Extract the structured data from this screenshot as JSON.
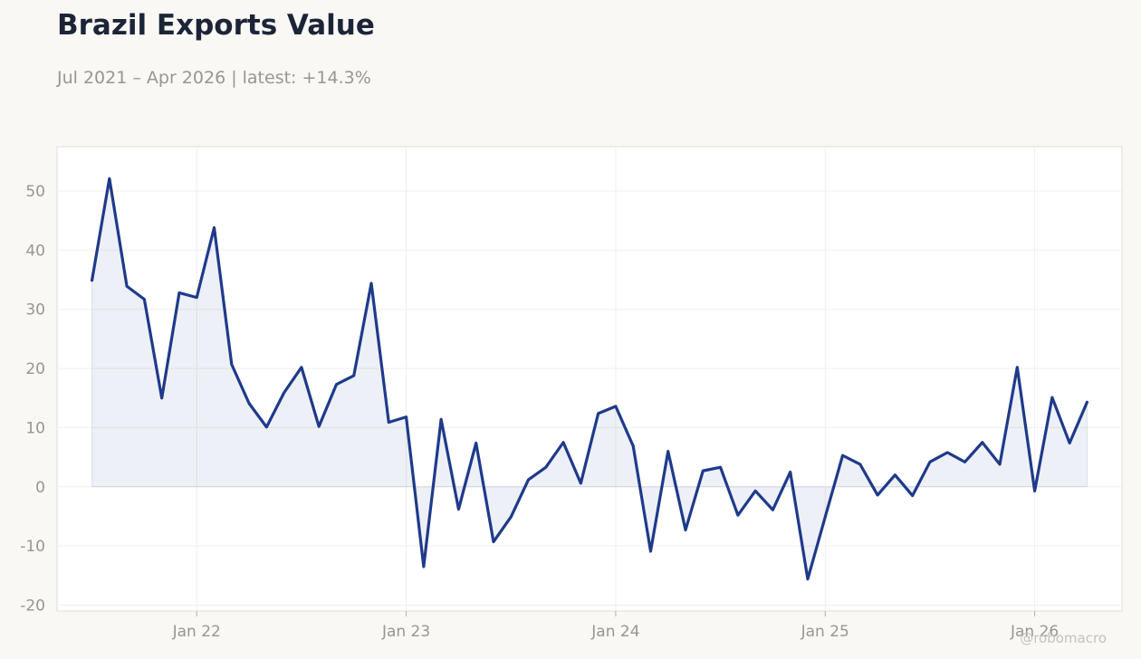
{
  "header": {
    "title": "Brazil Exports Value",
    "subtitle": "Jul 2021 – Apr 2026 | latest: +14.3%"
  },
  "watermark": "@robomacro",
  "colors": {
    "background": "#f9f8f5",
    "plot_background": "#ffffff",
    "line": "#1f3a8a",
    "area_fill": "#1f3a8a",
    "gridline": "#f0efec",
    "tick_text": "#999690",
    "title_text": "#1c2438"
  },
  "chart_data": {
    "type": "area",
    "title": "Brazil Exports Value",
    "subtitle": "Jul 2021 – Apr 2026 | latest: +14.3%",
    "xlabel": "",
    "ylabel": "",
    "x_ticks": [
      {
        "label": "Jan 22",
        "date": "2022-01"
      },
      {
        "label": "Jan 23",
        "date": "2023-01"
      },
      {
        "label": "Jan 24",
        "date": "2024-01"
      },
      {
        "label": "Jan 25",
        "date": "2025-01"
      },
      {
        "label": "Jan 26",
        "date": "2026-01"
      }
    ],
    "y_ticks": [
      -20,
      -10,
      0,
      10,
      20,
      30,
      40,
      50
    ],
    "ylim": [
      -21,
      57.5
    ],
    "xlim": [
      "2021-05",
      "2026-06"
    ],
    "grid": true,
    "legend": "none",
    "series": [
      {
        "x": [
          "2021-07",
          "2021-08",
          "2021-09",
          "2021-10",
          "2021-11",
          "2021-12",
          "2022-01",
          "2022-02",
          "2022-03",
          "2022-04",
          "2022-05",
          "2022-06",
          "2022-07",
          "2022-08",
          "2022-09",
          "2022-10",
          "2022-11",
          "2022-12",
          "2023-01",
          "2023-02",
          "2023-03",
          "2023-04",
          "2023-05",
          "2023-06",
          "2023-07",
          "2023-08",
          "2023-09",
          "2023-10",
          "2023-11",
          "2023-12",
          "2024-01",
          "2024-02",
          "2024-03",
          "2024-04",
          "2024-05",
          "2024-06",
          "2024-07",
          "2024-08",
          "2024-09",
          "2024-10",
          "2024-11",
          "2024-12",
          "2025-01",
          "2025-02",
          "2025-03",
          "2025-04",
          "2025-05",
          "2025-06",
          "2025-07",
          "2025-08",
          "2025-09",
          "2025-10",
          "2025-11",
          "2025-12",
          "2026-01",
          "2026-02",
          "2026-03",
          "2026-04"
        ],
        "values": [
          34.9,
          52.1,
          33.9,
          31.7,
          15.0,
          32.8,
          32.0,
          43.8,
          20.7,
          14.1,
          10.1,
          15.9,
          20.2,
          10.2,
          17.3,
          18.8,
          34.4,
          10.9,
          11.8,
          -13.5,
          11.4,
          -3.8,
          7.4,
          -9.3,
          -5.1,
          1.2,
          3.3,
          7.5,
          0.6,
          12.4,
          13.6,
          6.9,
          -10.9,
          6.0,
          -7.3,
          2.7,
          3.3,
          -4.8,
          -0.7,
          -3.9,
          2.5,
          -15.6,
          -5.1,
          5.3,
          3.8,
          -1.4,
          2.0,
          -1.5,
          4.2,
          5.8,
          4.2,
          7.5,
          3.8,
          20.2,
          -0.7,
          15.1,
          7.4,
          14.3
        ]
      }
    ]
  }
}
